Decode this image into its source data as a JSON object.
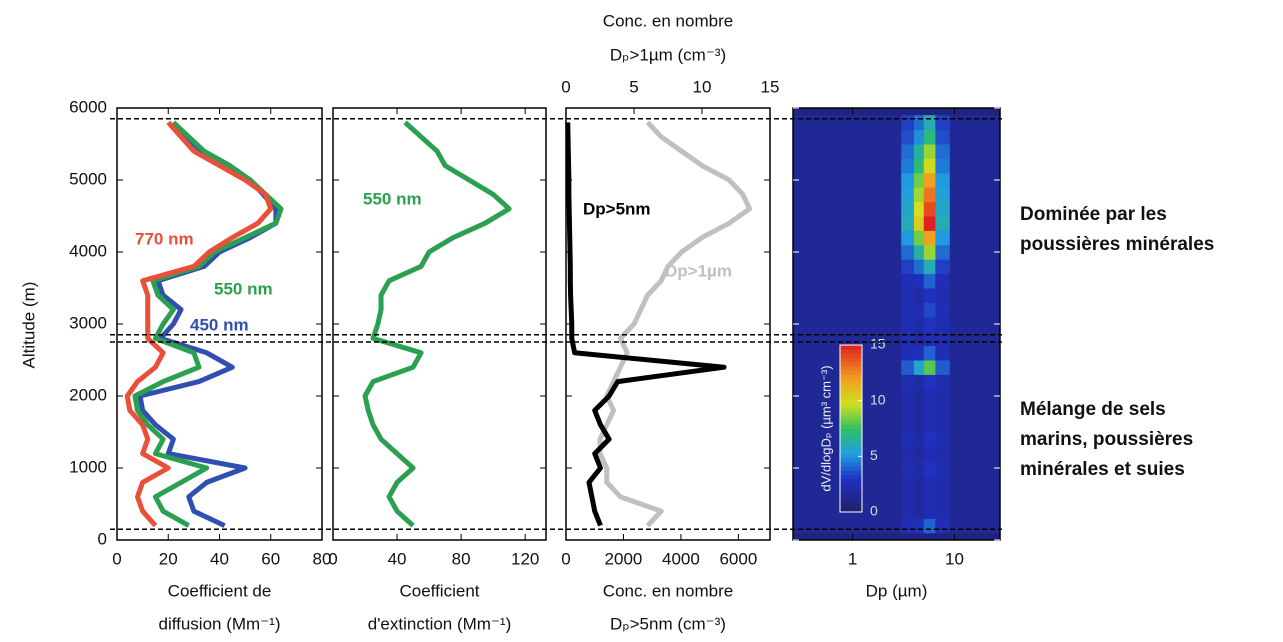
{
  "chart_data": [
    {
      "type": "profile",
      "ylabel": "Altitude (m)",
      "xlabel": [
        "Coefficient de",
        "diffusion (Mm⁻¹)"
      ],
      "xlim": [
        0,
        80
      ],
      "xticks": [
        0,
        20,
        40,
        60,
        80
      ],
      "ylim": [
        0,
        6000
      ],
      "yticks": [
        0,
        1000,
        2000,
        3000,
        4000,
        5000,
        6000
      ],
      "hlines": [
        5850,
        2850,
        2750,
        150
      ],
      "y": [
        200,
        400,
        600,
        800,
        1000,
        1200,
        1400,
        1600,
        1800,
        2000,
        2200,
        2400,
        2600,
        2800,
        3000,
        3200,
        3400,
        3600,
        3800,
        4000,
        4200,
        4400,
        4600,
        4800,
        5000,
        5200,
        5400,
        5600,
        5800
      ],
      "series": [
        {
          "name": "450 nm",
          "color": "#3050b0",
          "values": [
            42,
            30,
            28,
            35,
            50,
            20,
            22,
            15,
            10,
            9,
            32,
            45,
            35,
            17,
            22,
            25,
            18,
            16,
            34,
            40,
            52,
            62,
            62,
            57,
            52,
            43,
            33,
            27,
            22
          ]
        },
        {
          "name": "550 nm",
          "color": "#2aa050",
          "values": [
            28,
            18,
            15,
            25,
            35,
            15,
            18,
            12,
            8,
            7,
            18,
            32,
            30,
            15,
            18,
            22,
            16,
            14,
            32,
            38,
            50,
            62,
            64,
            58,
            52,
            44,
            34,
            28,
            22
          ]
        },
        {
          "name": "770 nm",
          "color": "#e8503a",
          "values": [
            15,
            10,
            8,
            10,
            20,
            10,
            12,
            10,
            5,
            4,
            8,
            15,
            18,
            12,
            12,
            12,
            12,
            10,
            30,
            36,
            45,
            55,
            60,
            58,
            50,
            40,
            30,
            25,
            20
          ]
        }
      ]
    },
    {
      "type": "profile",
      "xlabel": [
        "Coefficient",
        "d'extinction (Mm⁻¹)"
      ],
      "xlim": [
        0,
        133
      ],
      "xticks": [
        0,
        40,
        80,
        120
      ],
      "ylim": [
        0,
        6000
      ],
      "y": [
        200,
        400,
        600,
        800,
        1000,
        1200,
        1400,
        1600,
        1800,
        2000,
        2200,
        2400,
        2600,
        2800,
        3000,
        3200,
        3400,
        3600,
        3800,
        4000,
        4200,
        4400,
        4600,
        4800,
        5000,
        5200,
        5400,
        5600,
        5800
      ],
      "series": [
        {
          "name": "550 nm",
          "color": "#2aa050",
          "values": [
            50,
            40,
            35,
            40,
            50,
            40,
            30,
            25,
            22,
            20,
            25,
            50,
            55,
            25,
            28,
            30,
            30,
            35,
            55,
            60,
            75,
            95,
            110,
            100,
            85,
            70,
            65,
            55,
            45
          ]
        }
      ]
    },
    {
      "type": "profile",
      "xlabel": [
        "Conc. en nombre",
        "Dₚ>5nm (cm⁻³)"
      ],
      "x2label": [
        "Conc. en nombre",
        "Dₚ>1µm (cm⁻³)"
      ],
      "xlim": [
        0,
        7100
      ],
      "xticks": [
        0,
        2000,
        4000,
        6000
      ],
      "x2lim": [
        0,
        15
      ],
      "x2ticks": [
        0,
        5,
        10,
        15
      ],
      "ylim": [
        0,
        6000
      ],
      "y": [
        200,
        400,
        600,
        800,
        1000,
        1200,
        1400,
        1600,
        1800,
        2000,
        2200,
        2400,
        2600,
        2800,
        3000,
        3200,
        3400,
        3600,
        3800,
        4000,
        4200,
        4400,
        4600,
        4800,
        5000,
        5200,
        5400,
        5600,
        5800
      ],
      "series": [
        {
          "name": "Dp>1µm",
          "color": "#c0c0c0",
          "axis": "x2",
          "values": [
            6,
            7,
            4,
            3,
            3,
            2.5,
            2.5,
            3,
            3.5,
            3,
            3.5,
            4,
            4.5,
            4,
            5,
            5.5,
            6,
            7,
            7.5,
            8.5,
            10,
            12,
            13.5,
            13,
            12,
            10,
            8.5,
            7,
            6
          ]
        },
        {
          "name": "Dp>5nm",
          "color": "#000000",
          "values": [
            1200,
            1000,
            900,
            800,
            1200,
            1000,
            1500,
            1200,
            1000,
            1500,
            1800,
            5500,
            300,
            200,
            200,
            180,
            160,
            150,
            150,
            140,
            130,
            120,
            110,
            100,
            100,
            90,
            80,
            70,
            60
          ]
        }
      ]
    },
    {
      "type": "heatmap",
      "xlabel": [
        "Dp (µm)"
      ],
      "xlog": true,
      "xlim": [
        0.26,
        28
      ],
      "xticks": [
        1,
        10
      ],
      "ylim": [
        0,
        6000
      ],
      "zlim": [
        0,
        15
      ],
      "zticks": [
        0,
        5,
        10,
        15
      ],
      "zlabel": "dV/dlogDₚ (µm³ cm⁻³)",
      "dp_edges": [
        0.26,
        3,
        4,
        5,
        6.5,
        9,
        28
      ],
      "y": [
        200,
        400,
        600,
        800,
        1000,
        1200,
        1400,
        1600,
        1800,
        2000,
        2200,
        2400,
        2600,
        2800,
        3000,
        3200,
        3400,
        3600,
        3800,
        4000,
        4200,
        4400,
        4600,
        4800,
        5000,
        5200,
        5400,
        5600,
        5800
      ],
      "z": [
        [
          1.5,
          2.7,
          2.8,
          4,
          2.7,
          1.5
        ],
        [
          1.5,
          2.3,
          1.8,
          2.5,
          2.3,
          1.5
        ],
        [
          1.5,
          2.3,
          1.8,
          2.5,
          2.3,
          1.5
        ],
        [
          1.5,
          2.3,
          1.8,
          2.5,
          2.3,
          1.5
        ],
        [
          1.5,
          2.4,
          2.1,
          3,
          2.4,
          1.5
        ],
        [
          1.5,
          2.3,
          1.8,
          2.5,
          2.3,
          1.5
        ],
        [
          1.5,
          2.4,
          2.1,
          3,
          2.4,
          1.5
        ],
        [
          1.5,
          2.3,
          1.8,
          2.5,
          2.3,
          1.5
        ],
        [
          1.5,
          2.3,
          1.8,
          2.5,
          2.3,
          1.5
        ],
        [
          1.5,
          2.3,
          1.8,
          2.5,
          2.3,
          1.5
        ],
        [
          1.5,
          2.4,
          2.1,
          3,
          2.4,
          1.5
        ],
        [
          1.5,
          3.9,
          5.6,
          8,
          3.9,
          1.5
        ],
        [
          1.5,
          2.7,
          2.8,
          4,
          2.7,
          1.5
        ],
        [
          1.5,
          2.3,
          1.8,
          2.5,
          2.3,
          1.5
        ],
        [
          1.5,
          2.4,
          2.1,
          3,
          2.4,
          1.5
        ],
        [
          1.5,
          2.6,
          2.5,
          3.5,
          2.6,
          1.5
        ],
        [
          1.5,
          2.4,
          2.1,
          3,
          2.4,
          1.5
        ],
        [
          1.5,
          2.7,
          2.8,
          4,
          2.7,
          1.5
        ],
        [
          1.5,
          3.3,
          4.2,
          6,
          3.3,
          1.5
        ],
        [
          1.5,
          4.2,
          6.3,
          9,
          4.2,
          1.5
        ],
        [
          1.5,
          5.1,
          8.4,
          12,
          5.1,
          1.5
        ],
        [
          1.5,
          6,
          10.5,
          15,
          6,
          1.5
        ],
        [
          1.5,
          5.7,
          9.8,
          14,
          5.7,
          1.5
        ],
        [
          1.5,
          5.4,
          9.1,
          13,
          5.4,
          1.5
        ],
        [
          1.5,
          5.1,
          8.4,
          12,
          5.1,
          1.5
        ],
        [
          1.5,
          4.5,
          7,
          10,
          4.5,
          1.5
        ],
        [
          1.5,
          4.2,
          6.3,
          9,
          4.2,
          1.5
        ],
        [
          1.5,
          3.6,
          4.9,
          7,
          3.6,
          1.5
        ],
        [
          1.5,
          3.3,
          4.2,
          6,
          3.3,
          1.5
        ]
      ]
    }
  ],
  "annotations": [
    [
      "Dominée par les",
      "poussières minérales"
    ],
    [
      "Mélange de sels",
      "marins, poussières",
      "minérales et suies"
    ]
  ]
}
